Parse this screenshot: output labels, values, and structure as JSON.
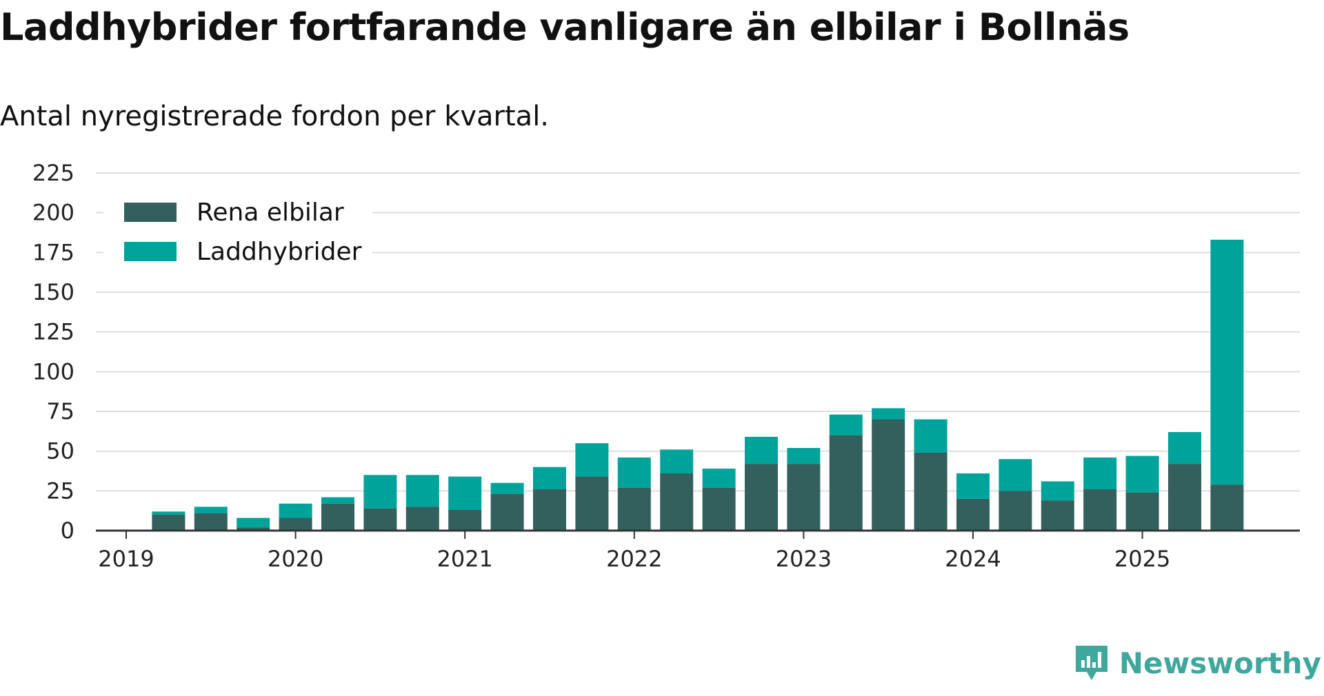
{
  "title": "Laddhybrider fortfarande vanligare än elbilar i Bollnäs",
  "subtitle": "Antal nyregistrerade fordon per kvartal.",
  "brand": "Newsworthy",
  "colors": {
    "rena": "#335f5c",
    "laddhybrider": "#00a39a",
    "grid": "#dddddd",
    "axis": "#333333",
    "brand": "#3fa79b"
  },
  "chart_data": {
    "type": "bar",
    "stacked": true,
    "title": "Laddhybrider fortfarande vanligare än elbilar i Bollnäs",
    "subtitle": "Antal nyregistrerade fordon per kvartal.",
    "xlabel": "",
    "ylabel": "",
    "ylim": [
      0,
      225
    ],
    "yticks": [
      "0",
      "25",
      "50",
      "75",
      "100",
      "125",
      "150",
      "175",
      "200",
      "225"
    ],
    "grid": true,
    "legend_position": "top-left",
    "x_tick_labels": [
      "2019",
      "2020",
      "2021",
      "2022",
      "2023",
      "2024",
      "2025"
    ],
    "categories": [
      "2019 Q1",
      "2019 Q2",
      "2019 Q3",
      "2019 Q4",
      "2020 Q1",
      "2020 Q2",
      "2020 Q3",
      "2020 Q4",
      "2021 Q1",
      "2021 Q2",
      "2021 Q3",
      "2021 Q4",
      "2022 Q1",
      "2022 Q2",
      "2022 Q3",
      "2022 Q4",
      "2023 Q1",
      "2023 Q2",
      "2023 Q3",
      "2023 Q4",
      "2024 Q1",
      "2024 Q2",
      "2024 Q3",
      "2024 Q4",
      "2025 Q1",
      "2025 Q2",
      "2025 Q3"
    ],
    "series": [
      {
        "name": "Rena elbilar",
        "values": [
          0,
          10,
          11,
          2,
          8,
          17,
          14,
          15,
          13,
          23,
          26,
          34,
          27,
          36,
          27,
          42,
          42,
          60,
          70,
          49,
          20,
          25,
          19,
          26,
          24,
          42,
          29
        ]
      },
      {
        "name": "Laddhybrider",
        "values": [
          0,
          2,
          4,
          6,
          9,
          4,
          21,
          20,
          21,
          7,
          14,
          21,
          19,
          15,
          12,
          17,
          10,
          13,
          7,
          21,
          16,
          20,
          12,
          20,
          23,
          20,
          154
        ]
      }
    ]
  }
}
